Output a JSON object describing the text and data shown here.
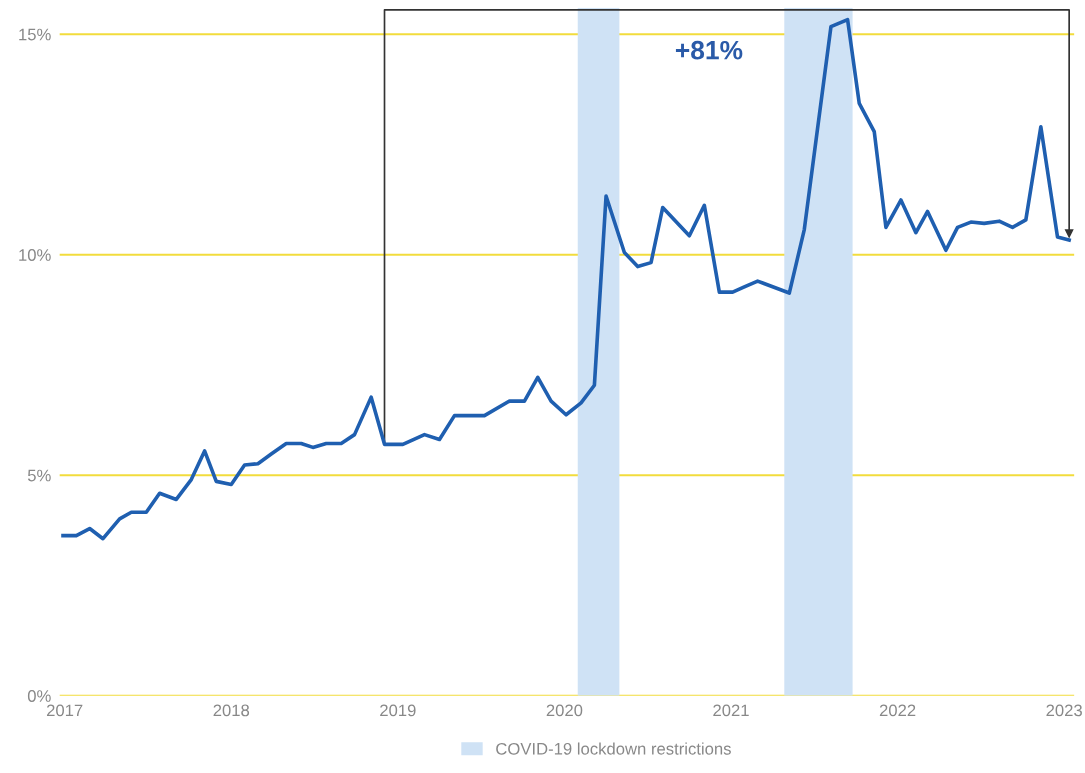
{
  "chart_data": {
    "type": "line",
    "x": [
      2016.99,
      2017.07,
      2017.15,
      2017.23,
      2017.33,
      2017.4,
      2017.49,
      2017.57,
      2017.67,
      2017.76,
      2017.84,
      2017.91,
      2018.0,
      2018.08,
      2018.16,
      2018.24,
      2018.33,
      2018.42,
      2018.49,
      2018.57,
      2018.66,
      2018.74,
      2018.84,
      2018.92,
      2019.03,
      2019.16,
      2019.25,
      2019.34,
      2019.52,
      2019.67,
      2019.76,
      2019.84,
      2019.92,
      2020.01,
      2020.1,
      2020.18,
      2020.25,
      2020.36,
      2020.44,
      2020.52,
      2020.59,
      2020.75,
      2020.84,
      2020.93,
      2021.01,
      2021.08,
      2021.16,
      2021.35,
      2021.44,
      2021.6,
      2021.7,
      2021.77,
      2021.86,
      2021.93,
      2022.02,
      2022.11,
      2022.18,
      2022.29,
      2022.36,
      2022.44,
      2022.52,
      2022.61,
      2022.69,
      2022.77,
      2022.86,
      2022.96,
      2023.03
    ],
    "series": [
      {
        "color": "#1f5fb0",
        "values": [
          3.63,
          3.63,
          3.79,
          3.56,
          4.01,
          4.16,
          4.16,
          4.59,
          4.45,
          4.9,
          5.55,
          4.86,
          4.79,
          5.23,
          5.26,
          5.48,
          5.72,
          5.72,
          5.63,
          5.72,
          5.72,
          5.92,
          6.77,
          5.7,
          5.7,
          5.92,
          5.81,
          6.35,
          6.35,
          6.68,
          6.68,
          7.22,
          6.68,
          6.37,
          6.64,
          7.04,
          11.33,
          10.05,
          9.73,
          9.82,
          11.07,
          10.43,
          11.12,
          9.15,
          9.15,
          9.27,
          9.4,
          9.13,
          10.57,
          15.17,
          15.33,
          13.43,
          12.79,
          10.62,
          11.24,
          10.5,
          10.98,
          10.1,
          10.62,
          10.74,
          10.71,
          10.76,
          10.62,
          10.79,
          12.9,
          10.4,
          10.33
        ]
      }
    ],
    "xlim": [
      2016.97,
      2023.06
    ],
    "xticks": [
      2017,
      2018,
      2019,
      2020,
      2021,
      2022,
      2023
    ],
    "ylim": [
      0,
      15.6
    ],
    "yticks": [
      {
        "value": 0,
        "label": "0%"
      },
      {
        "value": 5,
        "label": "5%"
      },
      {
        "value": 10,
        "label": "10%"
      },
      {
        "value": 15,
        "label": "15%"
      }
    ],
    "grid": "y",
    "bands": [
      {
        "axis": "x",
        "from": 2020.08,
        "to": 2020.33,
        "label": "COVID-19 lockdown restrictions",
        "color": "#cfe2f5"
      },
      {
        "axis": "x",
        "from": 2021.32,
        "to": 2021.73,
        "color": "#cfe2f5"
      }
    ],
    "legend": "bottom",
    "annotations": [
      "+81%"
    ]
  }
}
